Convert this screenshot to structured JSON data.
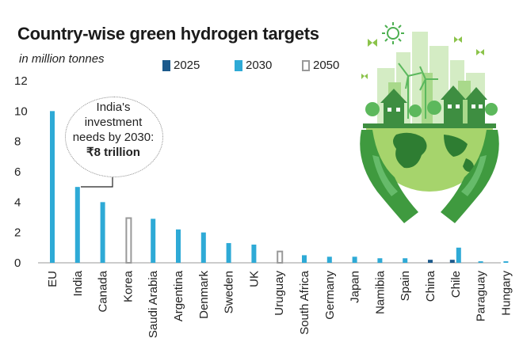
{
  "title": "Country-wise green hydrogen targets",
  "unit": "in million tonnes",
  "callout": {
    "lines": [
      "India's",
      "investment",
      "needs by 2030:"
    ],
    "amount": "₹8 trillion"
  },
  "colors": {
    "c2025": "#1c5a8c",
    "c2030": "#2eaad6",
    "c2050_border": "#999999",
    "green": "#4caf50"
  },
  "illustration": "earth-hands-green-city-icon",
  "chart_data": {
    "type": "bar",
    "title": "Country-wise green hydrogen targets",
    "ylabel": "in million tonnes",
    "ylim": [
      0,
      12
    ],
    "yticks": [
      0,
      2,
      4,
      6,
      8,
      10,
      12
    ],
    "grid": false,
    "legend_position": "top",
    "categories": [
      "EU",
      "India",
      "Canada",
      "Korea",
      "Saudi Arabia",
      "Argentina",
      "Denmark",
      "Sweden",
      "UK",
      "Uruguay",
      "South Africa",
      "Germany",
      "Japan",
      "Namibia",
      "Spain",
      "China",
      "Chile",
      "Paraguay",
      "Hungary"
    ],
    "series": [
      {
        "name": "2025",
        "values": [
          0,
          0,
          0,
          0,
          0,
          0,
          0,
          0,
          0,
          0,
          0,
          0,
          0,
          0,
          0,
          0.2,
          0.2,
          0,
          0
        ]
      },
      {
        "name": "2030",
        "values": [
          10,
          5,
          4,
          0,
          2.9,
          2.2,
          2,
          1.3,
          1.2,
          0,
          0.5,
          0.4,
          0.4,
          0.3,
          0.3,
          0,
          1,
          0.1,
          0.1
        ]
      },
      {
        "name": "2050",
        "values": [
          0,
          0,
          0,
          3,
          0,
          0,
          0,
          0,
          0,
          0.8,
          0,
          0,
          0,
          0,
          0,
          0,
          0,
          0,
          0
        ]
      }
    ]
  }
}
